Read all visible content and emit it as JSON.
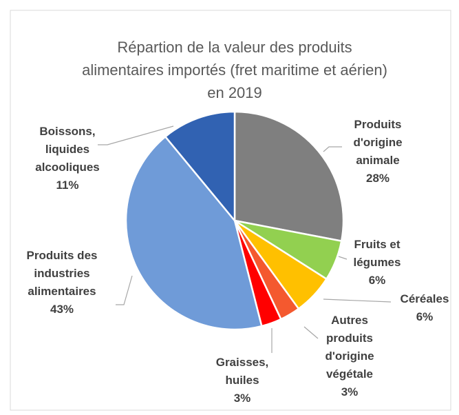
{
  "chart_data": {
    "type": "pie",
    "title": "Répartion de la valeur des produits alimentaires importés (fret maritime et aérien) en 2019",
    "categories": [
      "Produits d'origine animale",
      "Fruits et légumes",
      "Céréales",
      "Autres produits d'origine végétale",
      "Graisses, huiles",
      "Produits des industries alimentaires",
      "Boissons, liquides alcooliques"
    ],
    "values": [
      28,
      6,
      6,
      3,
      3,
      43,
      11
    ],
    "value_labels": [
      "28%",
      "6%",
      "6%",
      "3%",
      "3%",
      "43%",
      "11%"
    ],
    "colors": [
      "#7f7f7f",
      "#92d050",
      "#ffc000",
      "#f4592f",
      "#ff0000",
      "#6f9bd8",
      "#3162b2"
    ]
  }
}
